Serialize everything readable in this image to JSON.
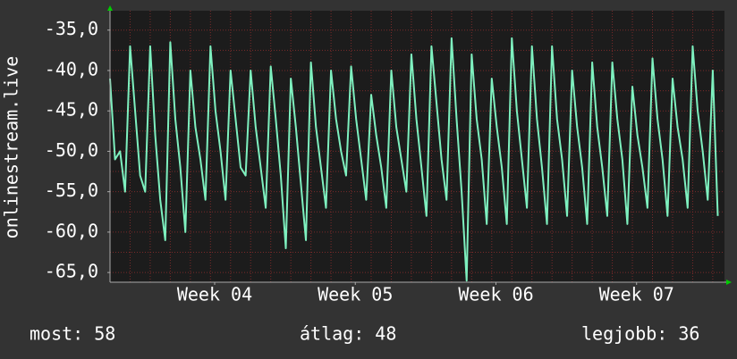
{
  "chart_data": {
    "type": "line",
    "y_label": "onlinestream.live",
    "x": [
      0,
      6,
      12,
      18,
      24,
      30,
      36,
      42,
      48,
      54,
      60,
      66,
      72,
      78,
      84,
      90,
      96,
      102,
      108,
      114,
      120,
      126,
      132,
      138,
      144,
      150,
      156,
      162,
      168,
      174,
      180,
      186,
      192,
      198,
      204,
      210,
      216,
      222,
      228,
      234,
      240,
      246,
      252,
      258,
      264,
      270,
      276,
      282,
      288,
      294,
      300,
      306,
      312,
      318,
      324,
      330,
      336,
      342,
      348,
      354,
      360,
      366,
      372,
      378,
      384,
      390,
      396,
      402,
      408,
      414,
      420,
      426,
      432,
      438,
      444,
      450,
      456,
      462,
      468,
      474,
      480,
      486,
      492,
      498,
      504,
      510,
      516,
      522,
      528,
      534,
      540,
      546,
      552,
      558,
      564,
      570,
      576,
      582,
      588,
      594,
      600,
      606,
      612,
      618,
      624,
      630,
      636,
      642,
      648,
      654,
      660,
      666,
      672,
      678,
      684,
      690,
      696,
      702,
      708,
      714,
      720,
      726
    ],
    "series": [
      {
        "name": "onlinestream.live",
        "color": "#7ef0bf",
        "values": [
          -41,
          -51,
          -50,
          -55,
          -37,
          -45,
          -53,
          -55,
          -37,
          -48,
          -56,
          -61,
          -36.5,
          -46,
          -52,
          -60,
          -40,
          -47,
          -51,
          -56,
          -37,
          -45,
          -50,
          -56,
          -40,
          -46,
          -52,
          -53,
          -40,
          -47,
          -52,
          -57,
          -39.5,
          -46,
          -53,
          -62,
          -41,
          -47,
          -54,
          -61,
          -39,
          -47,
          -52,
          -57,
          -40,
          -46,
          -50,
          -53,
          -39.5,
          -46,
          -51,
          -56,
          -43,
          -48,
          -52,
          -57,
          -40,
          -47,
          -51,
          -55,
          -38,
          -46,
          -52,
          -58,
          -37,
          -44,
          -51,
          -56,
          -36,
          -46,
          -55,
          -66,
          -38,
          -46,
          -51,
          -59,
          -41,
          -47,
          -52,
          -59,
          -36,
          -45,
          -51,
          -57,
          -37,
          -46,
          -52,
          -59,
          -37,
          -46,
          -51,
          -58,
          -40,
          -47,
          -52,
          -59,
          -39,
          -47,
          -52,
          -58,
          -39,
          -46,
          -51,
          -59,
          -42,
          -48,
          -52,
          -57,
          -38.5,
          -46,
          -51,
          -58,
          -41,
          -47,
          -51,
          -57,
          -37,
          -45,
          -50,
          -56,
          -40,
          -58
        ]
      }
    ],
    "xlim": [
      0,
      734
    ],
    "xticks": [
      {
        "value": 125,
        "label": "Week 04"
      },
      {
        "value": 293,
        "label": "Week 05"
      },
      {
        "value": 461,
        "label": "Week 06"
      },
      {
        "value": 629,
        "label": "Week 07"
      }
    ],
    "ylim": [
      -66.2,
      -32.6
    ],
    "yticks": [
      {
        "value": -35,
        "label": "-35,0"
      },
      {
        "value": -40,
        "label": "-40,0"
      },
      {
        "value": -45,
        "label": "-45,0"
      },
      {
        "value": -50,
        "label": "-50,0"
      },
      {
        "value": -55,
        "label": "-55,0"
      },
      {
        "value": -60,
        "label": "-60,0"
      },
      {
        "value": -65,
        "label": "-65,0"
      }
    ],
    "grid": true,
    "footer": {
      "current": "most: 58",
      "average": "átlag: 48",
      "best": "legjobb: 36"
    }
  }
}
